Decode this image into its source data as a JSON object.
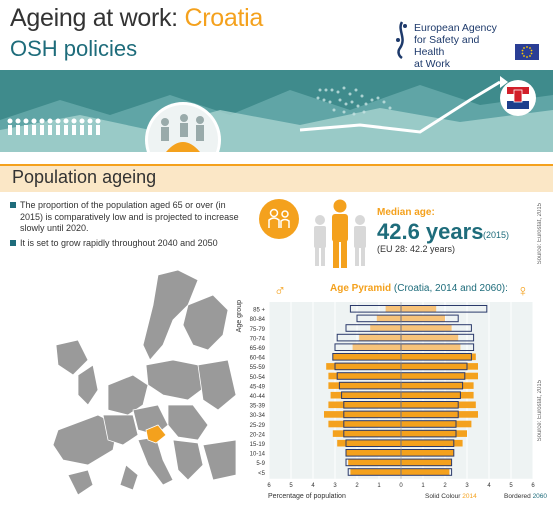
{
  "header": {
    "title_main": "Ageing at work: ",
    "title_country": "Croatia",
    "subtitle": "OSH policies",
    "agency_lines": [
      "European Agency",
      "for Safety and Health",
      "at Work"
    ]
  },
  "section": {
    "title": "Population ageing",
    "bullets": [
      "The proportion of the population aged 65 or over (in 2015) is comparatively low and is projected to increase slowly until 2020.",
      "It is set to grow rapidly throughout 2040 and 2050"
    ]
  },
  "median": {
    "label": "Median age:",
    "value": "42.6 years",
    "year": "(2015)",
    "eu": "(EU 28: 42.2 years)",
    "source": "Source: Eurostat, 2015"
  },
  "colors": {
    "teal": "#1e6c7b",
    "orange": "#f4a11d",
    "highlight": "#e9a23b"
  },
  "chart_data": {
    "type": "bar",
    "title": "Age Pyramid",
    "title_suffix": "(Croatia, 2014 and 2060):",
    "ylabel": "Age group",
    "xlabel": "Percentage of population",
    "source": "Source: Eurostat, 2015",
    "legend": {
      "solid": "Solid Colour",
      "solid_year": "2014",
      "bordered": "Bordered",
      "bordered_year": "2060"
    },
    "xlim": [
      -6,
      6
    ],
    "x_ticks": [
      "6",
      "5",
      "4",
      "3",
      "2",
      "1",
      "0",
      "1",
      "2",
      "3",
      "4",
      "5",
      "6"
    ],
    "categories": [
      "85 +",
      "80-84",
      "75-79",
      "70-74",
      "65-69",
      "60-64",
      "55-59",
      "50-54",
      "45-49",
      "40-44",
      "35-39",
      "30-34",
      "25-29",
      "20-24",
      "15-19",
      "10-14",
      "5-9",
      "<5"
    ],
    "series": [
      {
        "name": "Males 2014",
        "values": [
          0.7,
          1.1,
          1.4,
          1.9,
          2.2,
          3.1,
          3.4,
          3.3,
          3.3,
          3.2,
          3.3,
          3.5,
          3.3,
          3.1,
          2.9,
          2.5,
          2.4,
          2.3
        ]
      },
      {
        "name": "Females 2014",
        "values": [
          1.6,
          2.0,
          2.3,
          2.6,
          2.7,
          3.4,
          3.5,
          3.5,
          3.3,
          3.3,
          3.4,
          3.5,
          3.2,
          3.0,
          2.8,
          2.4,
          2.3,
          2.2
        ]
      },
      {
        "name": "Males 2060",
        "values": [
          2.3,
          2.0,
          2.5,
          2.9,
          3.0,
          3.1,
          3.0,
          2.9,
          2.8,
          2.7,
          2.6,
          2.6,
          2.6,
          2.6,
          2.5,
          2.5,
          2.5,
          2.4
        ]
      },
      {
        "name": "Females 2060",
        "values": [
          3.9,
          2.6,
          3.2,
          3.3,
          3.3,
          3.2,
          3.0,
          2.9,
          2.8,
          2.7,
          2.6,
          2.6,
          2.5,
          2.5,
          2.4,
          2.4,
          2.3,
          2.3
        ]
      }
    ]
  }
}
